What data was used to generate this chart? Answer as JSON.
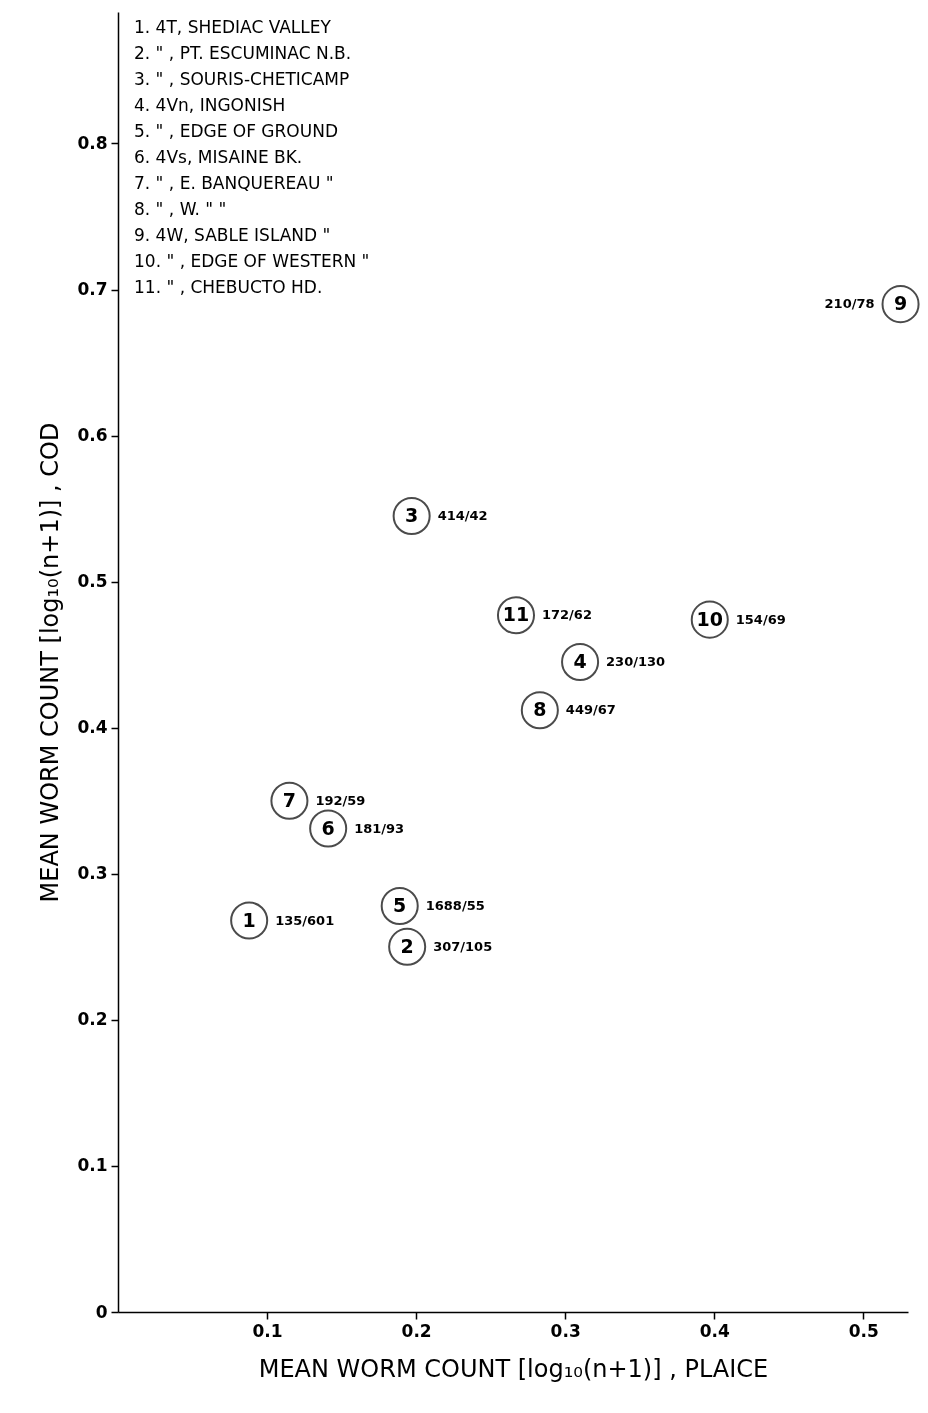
{
  "chart_data": {
    "type": "scatter",
    "xlabel": "MEAN  WORM  COUNT  [log₁₀(n+1)] , PLAICE",
    "ylabel": "MEAN  WORM  COUNT  [log₁₀(n+1)] , COD",
    "x": [
      0.088,
      0.194,
      0.197,
      0.31,
      0.189,
      0.141,
      0.115,
      0.283,
      0.525,
      0.397,
      0.267
    ],
    "values": [
      0.268,
      0.25,
      0.545,
      0.445,
      0.278,
      0.331,
      0.35,
      0.412,
      0.69,
      0.474,
      0.477
    ],
    "color": "#000000",
    "marker": "circle",
    "grid": false,
    "xlim": [
      0,
      0.53
    ],
    "ylim": [
      0,
      0.89
    ],
    "xticks": [
      0.1,
      0.2,
      0.3,
      0.4,
      0.5
    ],
    "yticks": [
      0,
      0.1,
      0.2,
      0.3,
      0.4,
      0.5,
      0.6,
      0.7,
      0.8
    ],
    "annotations": [
      "1. 4T, SHEDIAC VALLEY",
      "2. \" , PT. ESCUMINAC N.B.",
      "3. \" , SOURIS-CHETICAMP",
      "4. 4Vn, INGONISH",
      "5. \" , EDGE OF GROUND",
      "6. 4Vs, MISAINE BK.",
      "7. \" , E. BANQUEREAU \"",
      "8. \" , W.          \"              \"",
      "9. 4W, SABLE ISLAND \"",
      "10. \" , EDGE OF WESTERN \"",
      "11. \" , CHEBUCTO HD.",
      {
        "text": "1",
        "x": 0.088,
        "y": 0.268
      },
      {
        "text": "2",
        "x": 0.194,
        "y": 0.25
      },
      {
        "text": "3",
        "x": 0.197,
        "y": 0.545
      },
      {
        "text": "4",
        "x": 0.31,
        "y": 0.445
      },
      {
        "text": "5",
        "x": 0.189,
        "y": 0.278
      },
      {
        "text": "6",
        "x": 0.141,
        "y": 0.331
      },
      {
        "text": "7",
        "x": 0.115,
        "y": 0.35
      },
      {
        "text": "8",
        "x": 0.283,
        "y": 0.412
      },
      {
        "text": "9",
        "x": 0.525,
        "y": 0.69
      },
      {
        "text": "10",
        "x": 0.397,
        "y": 0.474
      },
      {
        "text": "11",
        "x": 0.267,
        "y": 0.477
      },
      {
        "text": "135/601",
        "x": 0.088,
        "y": 0.268
      },
      {
        "text": "307/105",
        "x": 0.194,
        "y": 0.25
      },
      {
        "text": "414/42",
        "x": 0.197,
        "y": 0.545
      },
      {
        "text": "230/130",
        "x": 0.31,
        "y": 0.445
      },
      {
        "text": "1688/55",
        "x": 0.189,
        "y": 0.278
      },
      {
        "text": "181/93",
        "x": 0.141,
        "y": 0.331
      },
      {
        "text": "192/59",
        "x": 0.115,
        "y": 0.35
      },
      {
        "text": "449/67",
        "x": 0.283,
        "y": 0.412
      },
      {
        "text": "210/78",
        "x": 0.525,
        "y": 0.69
      },
      {
        "text": "154/69",
        "x": 0.397,
        "y": 0.474
      },
      {
        "text": "172/62",
        "x": 0.267,
        "y": 0.477
      }
    ]
  }
}
